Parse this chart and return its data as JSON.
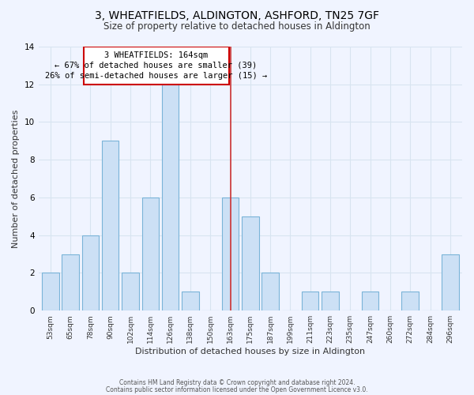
{
  "title": "3, WHEATFIELDS, ALDINGTON, ASHFORD, TN25 7GF",
  "subtitle": "Size of property relative to detached houses in Aldington",
  "xlabel": "Distribution of detached houses by size in Aldington",
  "ylabel": "Number of detached properties",
  "bar_labels": [
    "53sqm",
    "65sqm",
    "78sqm",
    "90sqm",
    "102sqm",
    "114sqm",
    "126sqm",
    "138sqm",
    "150sqm",
    "163sqm",
    "175sqm",
    "187sqm",
    "199sqm",
    "211sqm",
    "223sqm",
    "235sqm",
    "247sqm",
    "260sqm",
    "272sqm",
    "284sqm",
    "296sqm"
  ],
  "bar_values": [
    2,
    3,
    4,
    9,
    2,
    6,
    12,
    1,
    0,
    6,
    5,
    2,
    0,
    1,
    1,
    0,
    1,
    0,
    1,
    0,
    3
  ],
  "bar_color": "#cce0f5",
  "bar_edge_color": "#7ab4d8",
  "ylim": [
    0,
    14
  ],
  "yticks": [
    0,
    2,
    4,
    6,
    8,
    10,
    12,
    14
  ],
  "property_line_x": 9.0,
  "property_line_color": "#cc3333",
  "annotation_title": "3 WHEATFIELDS: 164sqm",
  "annotation_line1": "← 67% of detached houses are smaller (39)",
  "annotation_line2": "26% of semi-detached houses are larger (15) →",
  "annotation_box_color": "#ffffff",
  "annotation_box_edge_color": "#cc0000",
  "footer_line1": "Contains HM Land Registry data © Crown copyright and database right 2024.",
  "footer_line2": "Contains public sector information licensed under the Open Government Licence v3.0.",
  "background_color": "#f0f4ff",
  "grid_color": "#d8e4f0",
  "title_fontsize": 10,
  "subtitle_fontsize": 8.5,
  "ylabel_fontsize": 8,
  "xlabel_fontsize": 8
}
